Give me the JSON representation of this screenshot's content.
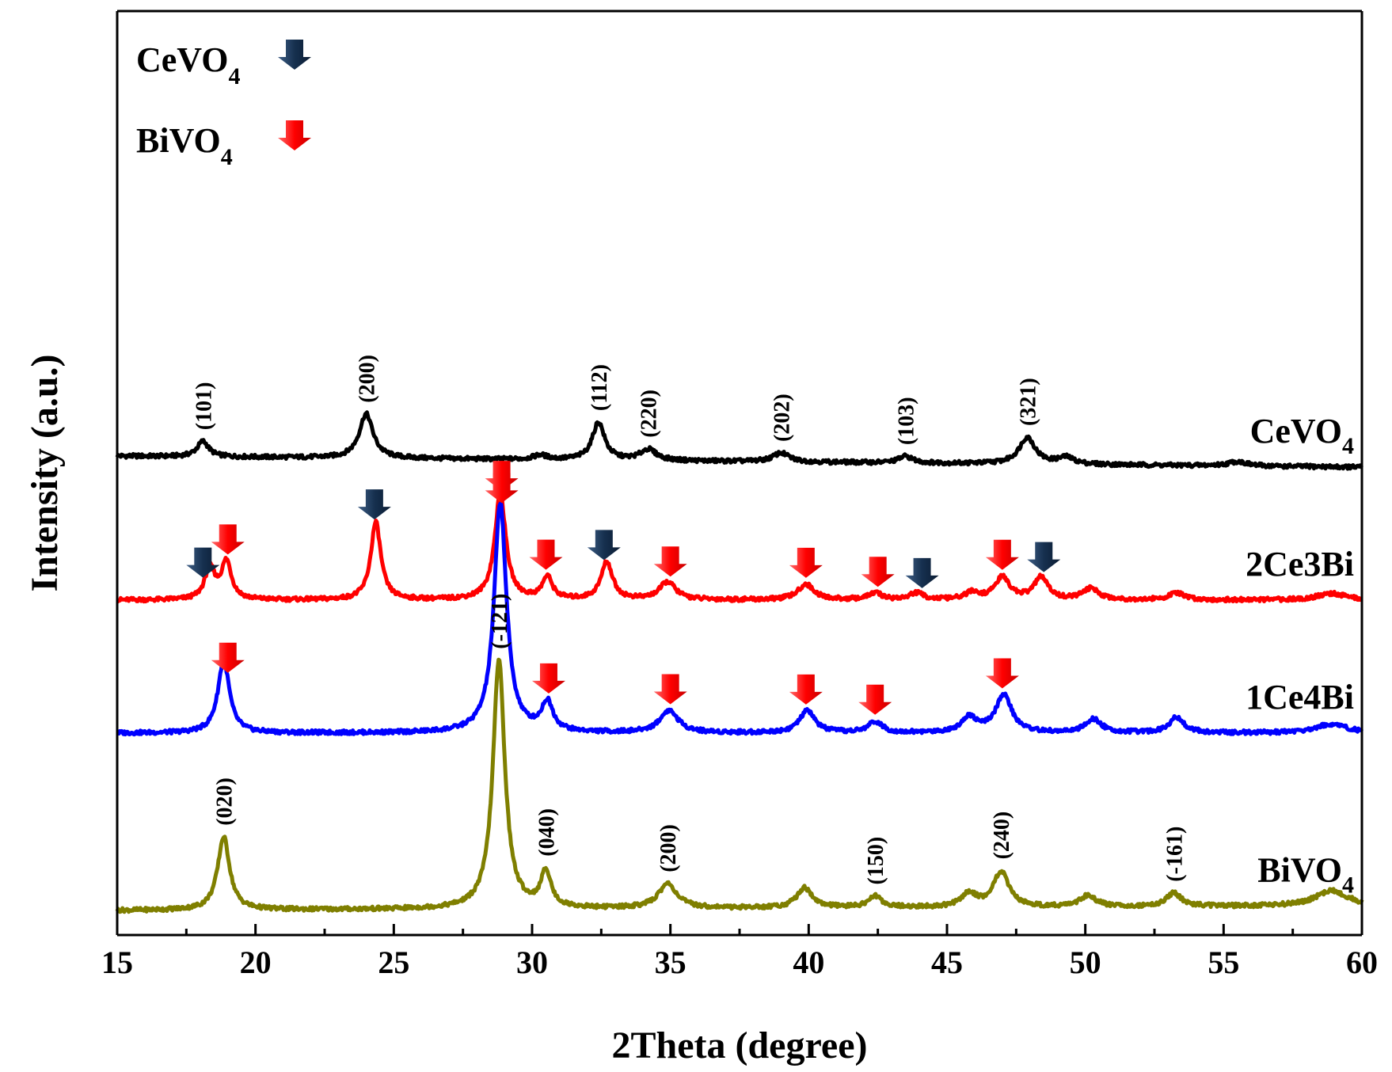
{
  "chart_data": {
    "type": "line",
    "title": "",
    "xlabel": "2Theta (degree)",
    "ylabel": "Intensity  (a.u.)",
    "xlim": [
      15,
      60
    ],
    "x_ticks": [
      15,
      20,
      25,
      30,
      35,
      40,
      45,
      50,
      55,
      60
    ],
    "x_tick_labels": [
      "15",
      "20",
      "25",
      "30",
      "35",
      "40",
      "45",
      "50",
      "55",
      "60"
    ],
    "legend": [
      {
        "label": "CeVO",
        "sub": "4",
        "marker": "arrow",
        "color": "#1c3d60"
      },
      {
        "label": "BiVO",
        "sub": "4",
        "marker": "arrow",
        "color": "#ff0000"
      }
    ],
    "series": [
      {
        "name": "CeVO4",
        "label": "CeVO",
        "label_sub": "4",
        "color": "#000000",
        "baseline": 2.05,
        "tilt": -0.05,
        "peaks": [
          {
            "x": 18.1,
            "h": 0.07,
            "w": 0.25
          },
          {
            "x": 24.0,
            "h": 0.2,
            "w": 0.3
          },
          {
            "x": 30.3,
            "h": 0.02,
            "w": 0.3
          },
          {
            "x": 32.4,
            "h": 0.17,
            "w": 0.27
          },
          {
            "x": 34.2,
            "h": 0.05,
            "w": 0.35
          },
          {
            "x": 39.0,
            "h": 0.04,
            "w": 0.35
          },
          {
            "x": 43.5,
            "h": 0.03,
            "w": 0.3
          },
          {
            "x": 47.9,
            "h": 0.12,
            "w": 0.35
          },
          {
            "x": 49.3,
            "h": 0.03,
            "w": 0.35
          },
          {
            "x": 55.5,
            "h": 0.02,
            "w": 0.4
          }
        ],
        "annotations": [
          {
            "text": "(101)",
            "x": 18.1
          },
          {
            "text": "(200)",
            "x": 24.0
          },
          {
            "text": "(112)",
            "x": 32.4
          },
          {
            "text": "(220)",
            "x": 34.2
          },
          {
            "text": "(202)",
            "x": 39.0
          },
          {
            "text": "(103)",
            "x": 43.5
          },
          {
            "text": "(321)",
            "x": 47.9
          }
        ],
        "arrows": []
      },
      {
        "name": "2Ce3Bi",
        "label": "2Ce3Bi",
        "label_sub": "",
        "color": "#ff0000",
        "baseline": 1.4,
        "tilt": 0.0,
        "peaks": [
          {
            "x": 18.35,
            "h": 0.14,
            "w": 0.22
          },
          {
            "x": 18.95,
            "h": 0.17,
            "w": 0.22
          },
          {
            "x": 24.35,
            "h": 0.35,
            "w": 0.22
          },
          {
            "x": 28.85,
            "h": 0.48,
            "w": 0.24
          },
          {
            "x": 30.55,
            "h": 0.1,
            "w": 0.22
          },
          {
            "x": 32.7,
            "h": 0.17,
            "w": 0.25
          },
          {
            "x": 34.9,
            "h": 0.08,
            "w": 0.35
          },
          {
            "x": 39.9,
            "h": 0.07,
            "w": 0.35
          },
          {
            "x": 42.4,
            "h": 0.03,
            "w": 0.3
          },
          {
            "x": 43.9,
            "h": 0.03,
            "w": 0.3
          },
          {
            "x": 45.9,
            "h": 0.03,
            "w": 0.3
          },
          {
            "x": 47.0,
            "h": 0.1,
            "w": 0.33
          },
          {
            "x": 48.4,
            "h": 0.1,
            "w": 0.3
          },
          {
            "x": 50.2,
            "h": 0.05,
            "w": 0.35
          },
          {
            "x": 53.3,
            "h": 0.03,
            "w": 0.35
          },
          {
            "x": 58.9,
            "h": 0.03,
            "w": 0.6
          }
        ],
        "annotations": [],
        "arrows": [
          {
            "x": 18.1,
            "phase": "CeVO4"
          },
          {
            "x": 19.0,
            "phase": "BiVO4"
          },
          {
            "x": 24.3,
            "phase": "CeVO4"
          },
          {
            "x": 28.9,
            "phase": "BiVO4"
          },
          {
            "x": 30.5,
            "phase": "BiVO4"
          },
          {
            "x": 32.6,
            "phase": "CeVO4"
          },
          {
            "x": 35.0,
            "phase": "BiVO4"
          },
          {
            "x": 39.9,
            "phase": "BiVO4"
          },
          {
            "x": 42.5,
            "phase": "BiVO4"
          },
          {
            "x": 44.1,
            "phase": "CeVO4"
          },
          {
            "x": 47.0,
            "phase": "BiVO4"
          },
          {
            "x": 48.5,
            "phase": "CeVO4"
          }
        ]
      },
      {
        "name": "1Ce4Bi",
        "label": "1Ce4Bi",
        "label_sub": "",
        "color": "#0000ff",
        "baseline": 0.8,
        "tilt": 0.0,
        "peaks": [
          {
            "x": 18.85,
            "h": 0.33,
            "w": 0.25
          },
          {
            "x": 28.85,
            "h": 1.04,
            "w": 0.27
          },
          {
            "x": 30.55,
            "h": 0.13,
            "w": 0.25
          },
          {
            "x": 34.95,
            "h": 0.1,
            "w": 0.4
          },
          {
            "x": 39.95,
            "h": 0.1,
            "w": 0.33
          },
          {
            "x": 42.4,
            "h": 0.05,
            "w": 0.3
          },
          {
            "x": 45.8,
            "h": 0.07,
            "w": 0.33
          },
          {
            "x": 47.05,
            "h": 0.17,
            "w": 0.35
          },
          {
            "x": 50.3,
            "h": 0.06,
            "w": 0.35
          },
          {
            "x": 53.3,
            "h": 0.07,
            "w": 0.33
          },
          {
            "x": 58.9,
            "h": 0.04,
            "w": 0.7
          }
        ],
        "annotations": [],
        "arrows": [
          {
            "x": 19.0,
            "phase": "BiVO4"
          },
          {
            "x": 28.9,
            "phase": "BiVO4"
          },
          {
            "x": 30.6,
            "phase": "BiVO4"
          },
          {
            "x": 35.0,
            "phase": "BiVO4"
          },
          {
            "x": 39.9,
            "phase": "BiVO4"
          },
          {
            "x": 42.4,
            "phase": "BiVO4"
          },
          {
            "x": 47.0,
            "phase": "BiVO4"
          }
        ]
      },
      {
        "name": "BiVO4",
        "label": "BiVO",
        "label_sub": "4",
        "color": "#7f7f00",
        "baseline": 0.0,
        "tilt": 0.02,
        "peaks": [
          {
            "x": 18.85,
            "h": 0.33,
            "w": 0.26
          },
          {
            "x": 28.8,
            "h": 1.12,
            "w": 0.26
          },
          {
            "x": 30.5,
            "h": 0.16,
            "w": 0.22
          },
          {
            "x": 34.9,
            "h": 0.11,
            "w": 0.4
          },
          {
            "x": 39.85,
            "h": 0.09,
            "w": 0.33
          },
          {
            "x": 42.4,
            "h": 0.05,
            "w": 0.3
          },
          {
            "x": 45.8,
            "h": 0.06,
            "w": 0.33
          },
          {
            "x": 46.95,
            "h": 0.16,
            "w": 0.33
          },
          {
            "x": 50.1,
            "h": 0.05,
            "w": 0.35
          },
          {
            "x": 53.2,
            "h": 0.06,
            "w": 0.33
          },
          {
            "x": 58.9,
            "h": 0.07,
            "w": 0.7
          }
        ],
        "annotations": [
          {
            "text": "(020)",
            "x": 18.85
          },
          {
            "text": "(-121)",
            "x": 28.8
          },
          {
            "text": "(040)",
            "x": 30.5
          },
          {
            "text": "(200)",
            "x": 34.9
          },
          {
            "text": "(150)",
            "x": 42.4
          },
          {
            "text": "(240)",
            "x": 46.95
          },
          {
            "text": "(-161)",
            "x": 53.2
          }
        ],
        "arrows": []
      }
    ]
  }
}
